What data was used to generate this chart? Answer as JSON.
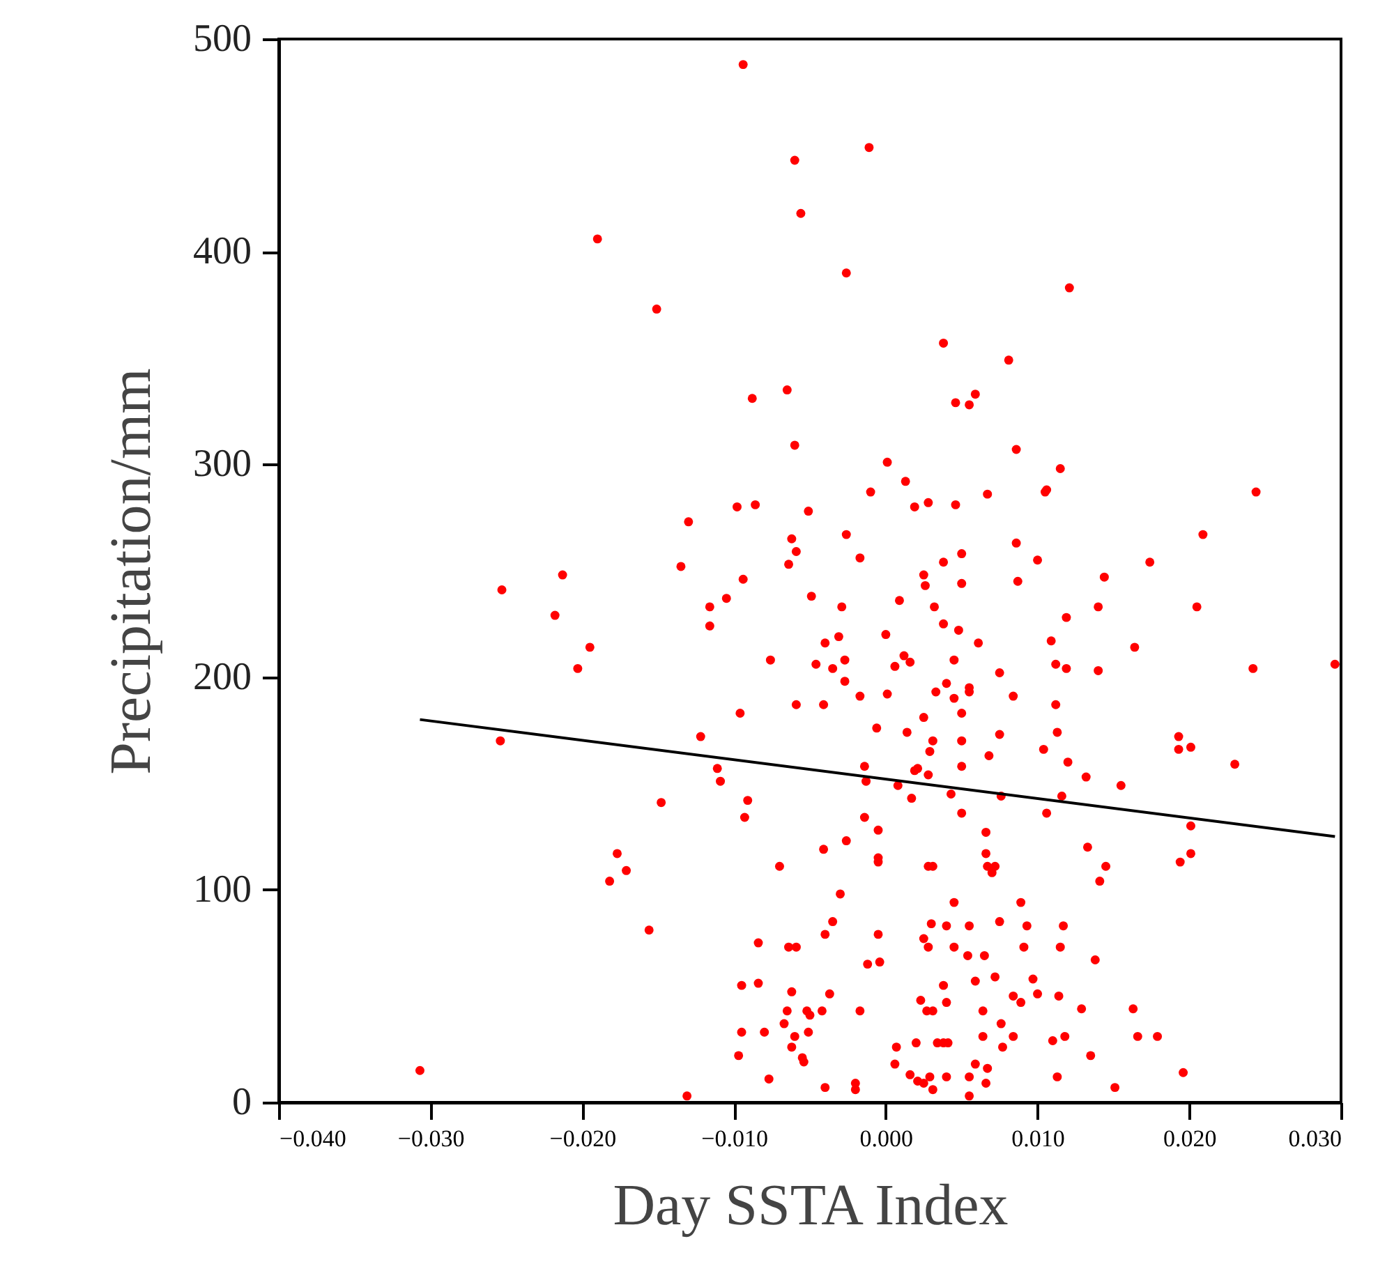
{
  "chart_data": {
    "type": "scatter",
    "xlabel": "Day SSTA Index",
    "ylabel": "Precipitation/mm",
    "xlim": [
      -0.04,
      0.03
    ],
    "ylim": [
      0,
      500
    ],
    "xticks": [
      {
        "value": -0.04,
        "label": "−0.040"
      },
      {
        "value": -0.03,
        "label": "−0.030"
      },
      {
        "value": -0.02,
        "label": "−0.020"
      },
      {
        "value": -0.01,
        "label": "−0.010"
      },
      {
        "value": 0,
        "label": "0.000"
      },
      {
        "value": 0.01,
        "label": "0.010"
      },
      {
        "value": 0.02,
        "label": "0.020"
      },
      {
        "value": 0.03,
        "label": "0.030"
      }
    ],
    "yticks": [
      0,
      100,
      200,
      300,
      400,
      500
    ],
    "grid": false,
    "series": [
      {
        "type": "scatter",
        "color": "#ff0000",
        "marker": "circle",
        "x": [
          -0.0094,
          -0.0011,
          -0.006,
          -0.0056,
          -0.019,
          -0.0026,
          0.0121,
          -0.0151,
          0.0038,
          0.0081,
          -0.0065,
          0.0059,
          -0.0088,
          0.0046,
          0.0055,
          -0.006,
          0.0086,
          0.0001,
          0.0115,
          0.0013,
          -0.001,
          0.0067,
          0.0105,
          0.0106,
          0.0244,
          -0.0098,
          -0.0086,
          -0.0051,
          0.0019,
          0.0028,
          0.0046,
          -0.013,
          -0.0026,
          0.0209,
          -0.0062,
          0.0086,
          -0.0059,
          0.005,
          -0.0017,
          0.01,
          0.0174,
          -0.0064,
          0.0038,
          -0.0135,
          -0.0213,
          0.0025,
          0.0144,
          -0.0094,
          0.0087,
          0.005,
          0.0026,
          -0.0253,
          -0.0105,
          -0.0049,
          0.0009,
          -0.0116,
          -0.0029,
          0.0032,
          0.014,
          0.0205,
          -0.0218,
          0.0119,
          0.0038,
          -0.0116,
          0.0048,
          0.0,
          -0.0031,
          -0.004,
          0.0061,
          0.0109,
          -0.0195,
          0.0164,
          0.0012,
          -0.0076,
          -0.0027,
          0.0045,
          0.0016,
          -0.0046,
          0.0006,
          0.0112,
          0.0296,
          -0.0035,
          0.0119,
          -0.0203,
          0.014,
          0.0242,
          0.0075,
          -0.0027,
          0.004,
          0.0055,
          0.0055,
          0.0033,
          -0.0017,
          0.0001,
          0.0084,
          0.0045,
          -0.0059,
          -0.0041,
          0.0112,
          -0.0096,
          0.005,
          0.0025,
          -0.0006,
          0.0014,
          0.0075,
          0.0113,
          -0.0122,
          0.0193,
          -0.0254,
          0.0031,
          0.005,
          0.0201,
          0.0193,
          0.0104,
          0.0029,
          0.0068,
          0.012,
          0.023,
          -0.0014,
          0.005,
          -0.0111,
          0.0019,
          0.0021,
          0.0028,
          0.0132,
          -0.0013,
          -0.0109,
          0.0008,
          0.0155,
          0.0017,
          0.0043,
          0.0076,
          0.0116,
          -0.0091,
          -0.0148,
          0.005,
          0.0106,
          -0.0093,
          -0.0014,
          0.0201,
          -0.0005,
          0.0066,
          -0.0026,
          0.0133,
          -0.0041,
          -0.0177,
          0.0066,
          0.0201,
          -0.0005,
          -0.0005,
          0.0194,
          -0.007,
          0.0028,
          0.0031,
          0.0067,
          0.0072,
          0.0145,
          0.007,
          -0.0171,
          -0.0182,
          0.0141,
          -0.003,
          0.0045,
          0.0089,
          -0.0035,
          0.0075,
          0.003,
          0.004,
          0.0055,
          0.0093,
          0.0117,
          -0.0156,
          -0.004,
          -0.0005,
          0.0025,
          -0.0084,
          -0.0064,
          -0.0059,
          0.0028,
          0.0045,
          0.0091,
          0.0115,
          0.0054,
          0.0065,
          0.0138,
          -0.0012,
          -0.0004,
          -0.0095,
          -0.0084,
          0.0038,
          0.0059,
          0.0072,
          0.0097,
          -0.0062,
          -0.0037,
          0.01,
          0.0084,
          0.0114,
          0.0023,
          0.0089,
          0.004,
          -0.0065,
          -0.0052,
          -0.0042,
          -0.0017,
          0.0027,
          0.0031,
          0.0064,
          0.0129,
          0.0163,
          -0.005,
          -0.0067,
          0.0076,
          -0.0095,
          -0.008,
          -0.0051,
          -0.006,
          0.0064,
          0.0084,
          0.0118,
          0.0166,
          0.0179,
          0.011,
          0.002,
          0.0034,
          0.0038,
          0.0041,
          -0.0062,
          0.0007,
          0.0077,
          0.0135,
          -0.0097,
          -0.0055,
          -0.0054,
          0.0006,
          0.0059,
          0.0067,
          -0.0307,
          0.0196,
          0.0016,
          0.0029,
          0.004,
          0.0055,
          0.0113,
          -0.0077,
          0.0021,
          0.0025,
          0.0066,
          -0.002,
          -0.004,
          0.0151,
          0.0031,
          -0.002,
          0.0055,
          -0.0131
        ],
        "values": [
          488,
          449,
          443,
          418,
          406,
          390,
          383,
          373,
          357,
          349,
          335,
          333,
          331,
          329,
          328,
          309,
          307,
          301,
          298,
          292,
          287,
          286,
          287,
          288,
          287,
          280,
          281,
          278,
          280,
          282,
          281,
          273,
          267,
          267,
          265,
          263,
          259,
          258,
          256,
          255,
          254,
          253,
          254,
          252,
          248,
          248,
          247,
          246,
          245,
          244,
          243,
          241,
          237,
          238,
          236,
          233,
          233,
          233,
          233,
          233,
          229,
          228,
          225,
          224,
          222,
          220,
          219,
          216,
          216,
          217,
          214,
          214,
          210,
          208,
          208,
          208,
          207,
          206,
          205,
          206,
          206,
          204,
          204,
          204,
          203,
          204,
          202,
          198,
          197,
          195,
          193,
          193,
          191,
          192,
          191,
          190,
          187,
          187,
          187,
          183,
          183,
          181,
          176,
          174,
          173,
          174,
          172,
          172,
          170,
          170,
          170,
          167,
          166,
          166,
          165,
          163,
          160,
          159,
          158,
          158,
          157,
          156,
          157,
          154,
          153,
          151,
          151,
          149,
          149,
          143,
          145,
          144,
          144,
          142,
          141,
          136,
          136,
          134,
          134,
          130,
          128,
          127,
          123,
          120,
          119,
          117,
          117,
          117,
          115,
          113,
          113,
          111,
          111,
          111,
          111,
          111,
          111,
          108,
          109,
          104,
          104,
          98,
          94,
          94,
          85,
          85,
          84,
          83,
          83,
          83,
          83,
          81,
          79,
          79,
          77,
          75,
          73,
          73,
          73,
          73,
          73,
          73,
          69,
          69,
          67,
          65,
          66,
          55,
          56,
          55,
          57,
          59,
          58,
          52,
          51,
          51,
          50,
          50,
          48,
          47,
          47,
          43,
          43,
          43,
          43,
          43,
          43,
          43,
          44,
          44,
          41,
          37,
          37,
          33,
          33,
          33,
          31,
          31,
          31,
          31,
          31,
          31,
          29,
          28,
          28,
          28,
          28,
          26,
          26,
          26,
          22,
          22,
          21,
          19,
          18,
          18,
          16,
          15,
          14,
          13,
          12,
          12,
          12,
          12,
          11,
          10,
          9,
          9,
          9,
          7,
          7,
          6,
          6,
          3,
          3
        ]
      },
      {
        "type": "line",
        "color": "#000000",
        "x": [
          -0.0307,
          0.0296
        ],
        "values": [
          180,
          125
        ]
      }
    ]
  }
}
